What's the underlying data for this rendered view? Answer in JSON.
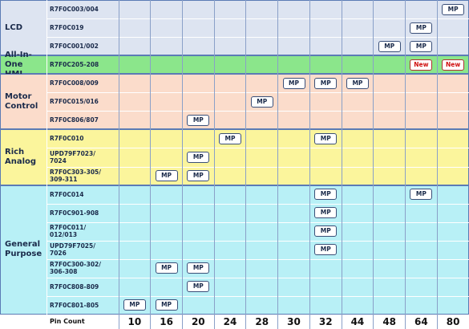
{
  "columns": {
    "label": "Pin Count",
    "values": [
      "10",
      "16",
      "20",
      "24",
      "28",
      "30",
      "32",
      "44",
      "48",
      "64",
      "80"
    ]
  },
  "groups": [
    {
      "label": [
        "LCD"
      ],
      "color": "#dde4f1",
      "rows": [
        {
          "part": [
            "R7F0C003/004"
          ],
          "cells": [
            null,
            null,
            null,
            null,
            null,
            null,
            null,
            null,
            null,
            null,
            "MP"
          ]
        },
        {
          "part": [
            "R7F0C019"
          ],
          "cells": [
            null,
            null,
            null,
            null,
            null,
            null,
            null,
            null,
            null,
            "MP",
            null
          ]
        },
        {
          "part": [
            "R7F0C001/002"
          ],
          "cells": [
            null,
            null,
            null,
            null,
            null,
            null,
            null,
            null,
            "MP",
            "MP",
            null
          ]
        }
      ]
    },
    {
      "label": [
        "All-In-One",
        "HMI"
      ],
      "color": "#8be68b",
      "rows": [
        {
          "part": [
            "R7F0C205-208"
          ],
          "cells": [
            null,
            null,
            null,
            null,
            null,
            null,
            null,
            null,
            null,
            "New",
            "New"
          ]
        }
      ]
    },
    {
      "label": [
        "Motor",
        "Control"
      ],
      "color": "#fbdccb",
      "rows": [
        {
          "part": [
            "R7F0C008/009"
          ],
          "cells": [
            null,
            null,
            null,
            null,
            null,
            "MP",
            "MP",
            "MP",
            null,
            null,
            null
          ]
        },
        {
          "part": [
            "R7F0C015/016"
          ],
          "cells": [
            null,
            null,
            null,
            null,
            "MP",
            null,
            null,
            null,
            null,
            null,
            null
          ]
        },
        {
          "part": [
            "R7F0C806/807"
          ],
          "cells": [
            null,
            null,
            "MP",
            null,
            null,
            null,
            null,
            null,
            null,
            null,
            null
          ]
        }
      ]
    },
    {
      "label": [
        "Rich",
        "Analog"
      ],
      "color": "#fbf59c",
      "rows": [
        {
          "part": [
            "R7F0C010"
          ],
          "cells": [
            null,
            null,
            null,
            "MP",
            null,
            null,
            "MP",
            null,
            null,
            null,
            null
          ]
        },
        {
          "part": [
            "UPD79F7023/",
            "7024"
          ],
          "cells": [
            null,
            null,
            "MP",
            null,
            null,
            null,
            null,
            null,
            null,
            null,
            null
          ]
        },
        {
          "part": [
            "R7F0C303-305/",
            "309-311"
          ],
          "cells": [
            null,
            "MP",
            "MP",
            null,
            null,
            null,
            null,
            null,
            null,
            null,
            null
          ]
        }
      ]
    },
    {
      "label": [
        "General",
        "Purpose"
      ],
      "color": "#b8f0f6",
      "rows": [
        {
          "part": [
            "R7F0C014"
          ],
          "cells": [
            null,
            null,
            null,
            null,
            null,
            null,
            "MP",
            null,
            null,
            "MP",
            null
          ]
        },
        {
          "part": [
            "R7F0C901-908"
          ],
          "cells": [
            null,
            null,
            null,
            null,
            null,
            null,
            "MP",
            null,
            null,
            null,
            null
          ]
        },
        {
          "part": [
            "R7F0C011/",
            "012/013"
          ],
          "cells": [
            null,
            null,
            null,
            null,
            null,
            null,
            "MP",
            null,
            null,
            null,
            null
          ]
        },
        {
          "part": [
            "UPD79F7025/",
            "7026"
          ],
          "cells": [
            null,
            null,
            null,
            null,
            null,
            null,
            "MP",
            null,
            null,
            null,
            null
          ]
        },
        {
          "part": [
            "R7F0C300-302/",
            "306-308"
          ],
          "cells": [
            null,
            "MP",
            "MP",
            null,
            null,
            null,
            null,
            null,
            null,
            null,
            null
          ]
        },
        {
          "part": [
            "R7F0C808-809"
          ],
          "cells": [
            null,
            null,
            "MP",
            null,
            null,
            null,
            null,
            null,
            null,
            null,
            null
          ]
        },
        {
          "part": [
            "R7F0C801-805"
          ],
          "cells": [
            "MP",
            "MP",
            null,
            null,
            null,
            null,
            null,
            null,
            null,
            null,
            null
          ]
        }
      ]
    }
  ]
}
